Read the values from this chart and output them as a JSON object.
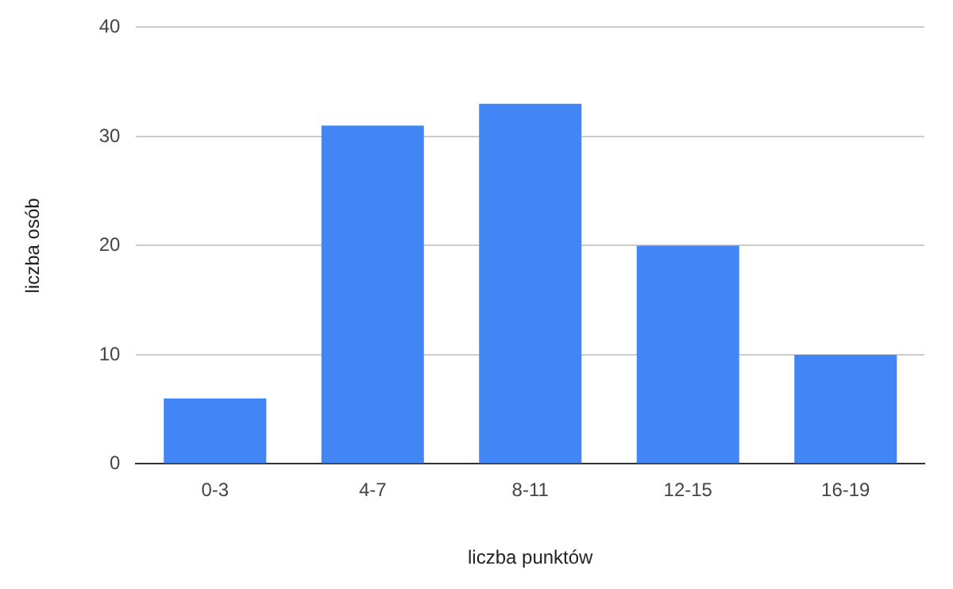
{
  "chart_data": {
    "type": "bar",
    "xlabel": "liczba punktów",
    "ylabel": "liczba osób",
    "categories": [
      "0-3",
      "4-7",
      "8-11",
      "12-15",
      "16-19"
    ],
    "values": [
      6,
      31,
      33,
      20,
      10
    ],
    "color": "#4285f4",
    "ylim": [
      0,
      40
    ],
    "yticks": [
      0,
      10,
      20,
      30,
      40
    ],
    "grid": "y"
  }
}
